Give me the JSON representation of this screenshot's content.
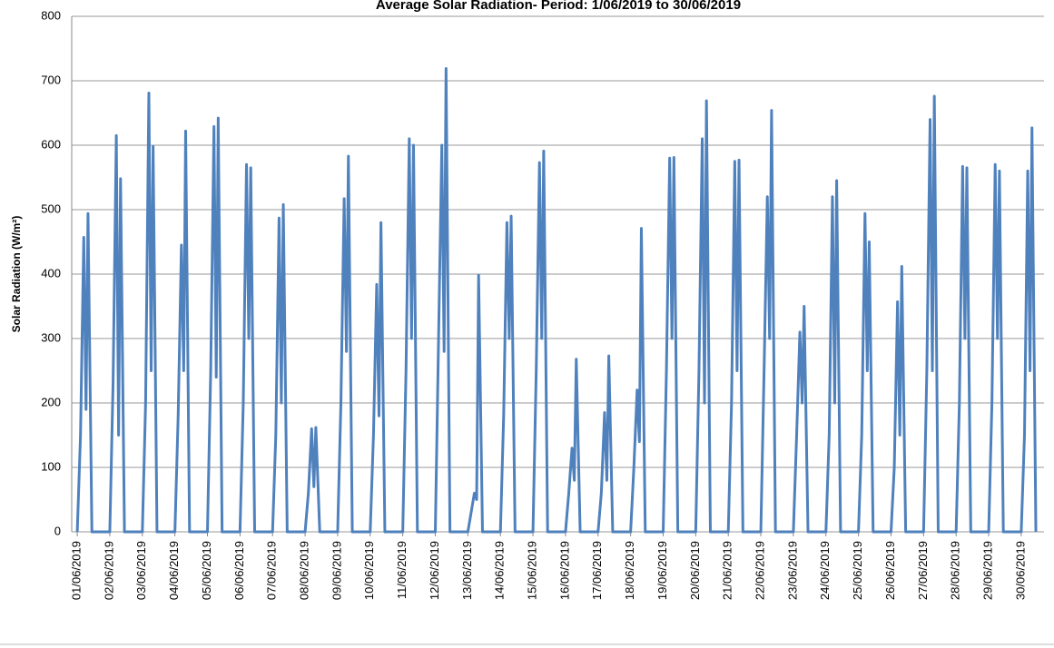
{
  "chart_data": {
    "type": "line",
    "title": "Average Solar Radiation- Period: 1/06/2019 to 30/06/2019",
    "y_label": "Solar Radiation (W/m²)",
    "ylim": [
      0,
      800
    ],
    "yticks": [
      0,
      100,
      200,
      300,
      400,
      500,
      600,
      700,
      800
    ],
    "xlim": [
      0.83,
      30.7
    ],
    "xticks": [
      {
        "value": 1,
        "label": "01/06/2019"
      },
      {
        "value": 2,
        "label": "02/06/2019"
      },
      {
        "value": 3,
        "label": "03/06/2019"
      },
      {
        "value": 4,
        "label": "04/06/2019"
      },
      {
        "value": 5,
        "label": "05/06/2019"
      },
      {
        "value": 6,
        "label": "06/06/2019"
      },
      {
        "value": 7,
        "label": "07/06/2019"
      },
      {
        "value": 8,
        "label": "08/06/2019"
      },
      {
        "value": 9,
        "label": "09/06/2019"
      },
      {
        "value": 10,
        "label": "10/06/2019"
      },
      {
        "value": 11,
        "label": "11/06/2019"
      },
      {
        "value": 12,
        "label": "12/06/2019"
      },
      {
        "value": 13,
        "label": "13/06/2019"
      },
      {
        "value": 14,
        "label": "14/06/2019"
      },
      {
        "value": 15,
        "label": "15/06/2019"
      },
      {
        "value": 16,
        "label": "16/06/2019"
      },
      {
        "value": 17,
        "label": "17/06/2019"
      },
      {
        "value": 18,
        "label": "18/06/2019"
      },
      {
        "value": 19,
        "label": "19/06/2019"
      },
      {
        "value": 20,
        "label": "20/06/2019"
      },
      {
        "value": 21,
        "label": "21/06/2019"
      },
      {
        "value": 22,
        "label": "22/06/2019"
      },
      {
        "value": 23,
        "label": "23/06/2019"
      },
      {
        "value": 24,
        "label": "24/06/2019"
      },
      {
        "value": 25,
        "label": "25/06/2019"
      },
      {
        "value": 26,
        "label": "26/06/2019"
      },
      {
        "value": 27,
        "label": "27/06/2019"
      },
      {
        "value": 28,
        "label": "28/06/2019"
      },
      {
        "value": 29,
        "label": "29/06/2019"
      },
      {
        "value": 30,
        "label": "30/06/2019"
      }
    ],
    "grid": true,
    "x": [
      1,
      1.1,
      1.2,
      1.27,
      1.33,
      1.45,
      2,
      2.1,
      2.2,
      2.27,
      2.33,
      2.45,
      3,
      3.1,
      3.2,
      3.27,
      3.33,
      3.45,
      4,
      4.1,
      4.2,
      4.27,
      4.33,
      4.45,
      5,
      5.1,
      5.2,
      5.27,
      5.33,
      5.45,
      6,
      6.1,
      6.2,
      6.27,
      6.33,
      6.45,
      7,
      7.1,
      7.2,
      7.27,
      7.33,
      7.45,
      8,
      8.1,
      8.2,
      8.27,
      8.33,
      8.45,
      9,
      9.1,
      9.2,
      9.27,
      9.33,
      9.45,
      10,
      10.1,
      10.2,
      10.27,
      10.33,
      10.45,
      11,
      11.1,
      11.2,
      11.27,
      11.33,
      11.45,
      12,
      12.1,
      12.2,
      12.27,
      12.33,
      12.45,
      13,
      13.1,
      13.2,
      13.27,
      13.33,
      13.45,
      14,
      14.1,
      14.2,
      14.27,
      14.33,
      14.45,
      15,
      15.1,
      15.2,
      15.27,
      15.33,
      15.45,
      16,
      16.1,
      16.2,
      16.27,
      16.33,
      16.45,
      17,
      17.1,
      17.2,
      17.27,
      17.33,
      17.45,
      18,
      18.1,
      18.2,
      18.27,
      18.33,
      18.45,
      19,
      19.1,
      19.2,
      19.27,
      19.33,
      19.45,
      20,
      20.1,
      20.2,
      20.27,
      20.33,
      20.45,
      21,
      21.1,
      21.2,
      21.27,
      21.33,
      21.45,
      22,
      22.1,
      22.2,
      22.27,
      22.33,
      22.45,
      23,
      23.1,
      23.2,
      23.27,
      23.33,
      23.45,
      24,
      24.1,
      24.2,
      24.27,
      24.33,
      24.45,
      25,
      25.1,
      25.2,
      25.27,
      25.33,
      25.45,
      26,
      26.1,
      26.2,
      26.27,
      26.33,
      26.45,
      27,
      27.1,
      27.2,
      27.27,
      27.33,
      27.45,
      28,
      28.1,
      28.2,
      28.27,
      28.33,
      28.45,
      29,
      29.1,
      29.2,
      29.27,
      29.33,
      29.45,
      30,
      30.1,
      30.2,
      30.27,
      30.33,
      30.45
    ],
    "series": [
      {
        "name": "Solar Radiation",
        "color": "#4f81bd",
        "values": [
          0,
          150,
          457,
          190,
          494,
          0,
          0,
          230,
          615,
          150,
          548,
          0,
          0,
          200,
          681,
          250,
          598,
          0,
          0,
          180,
          445,
          250,
          622,
          0,
          0,
          250,
          629,
          240,
          642,
          0,
          0,
          200,
          570,
          300,
          565,
          0,
          0,
          150,
          487,
          200,
          508,
          0,
          0,
          60,
          160,
          70,
          162,
          0,
          0,
          200,
          517,
          280,
          583,
          0,
          0,
          150,
          384,
          180,
          480,
          0,
          0,
          250,
          610,
          300,
          600,
          0,
          0,
          300,
          600,
          280,
          719,
          0,
          0,
          30,
          60,
          50,
          398,
          0,
          0,
          180,
          480,
          300,
          490,
          0,
          0,
          250,
          573,
          300,
          591,
          0,
          0,
          60,
          130,
          80,
          268,
          0,
          0,
          60,
          185,
          80,
          273,
          0,
          0,
          100,
          220,
          140,
          471,
          0,
          0,
          250,
          580,
          300,
          581,
          0,
          0,
          250,
          610,
          200,
          669,
          0,
          0,
          200,
          575,
          250,
          577,
          0,
          0,
          250,
          520,
          300,
          654,
          0,
          0,
          150,
          310,
          200,
          350,
          0,
          0,
          150,
          520,
          200,
          545,
          0,
          0,
          150,
          494,
          250,
          450,
          0,
          0,
          100,
          357,
          150,
          412,
          0,
          0,
          250,
          640,
          250,
          676,
          0,
          0,
          200,
          567,
          300,
          565,
          0,
          0,
          200,
          570,
          300,
          560,
          0,
          0,
          150,
          560,
          250,
          627,
          0
        ]
      }
    ]
  }
}
